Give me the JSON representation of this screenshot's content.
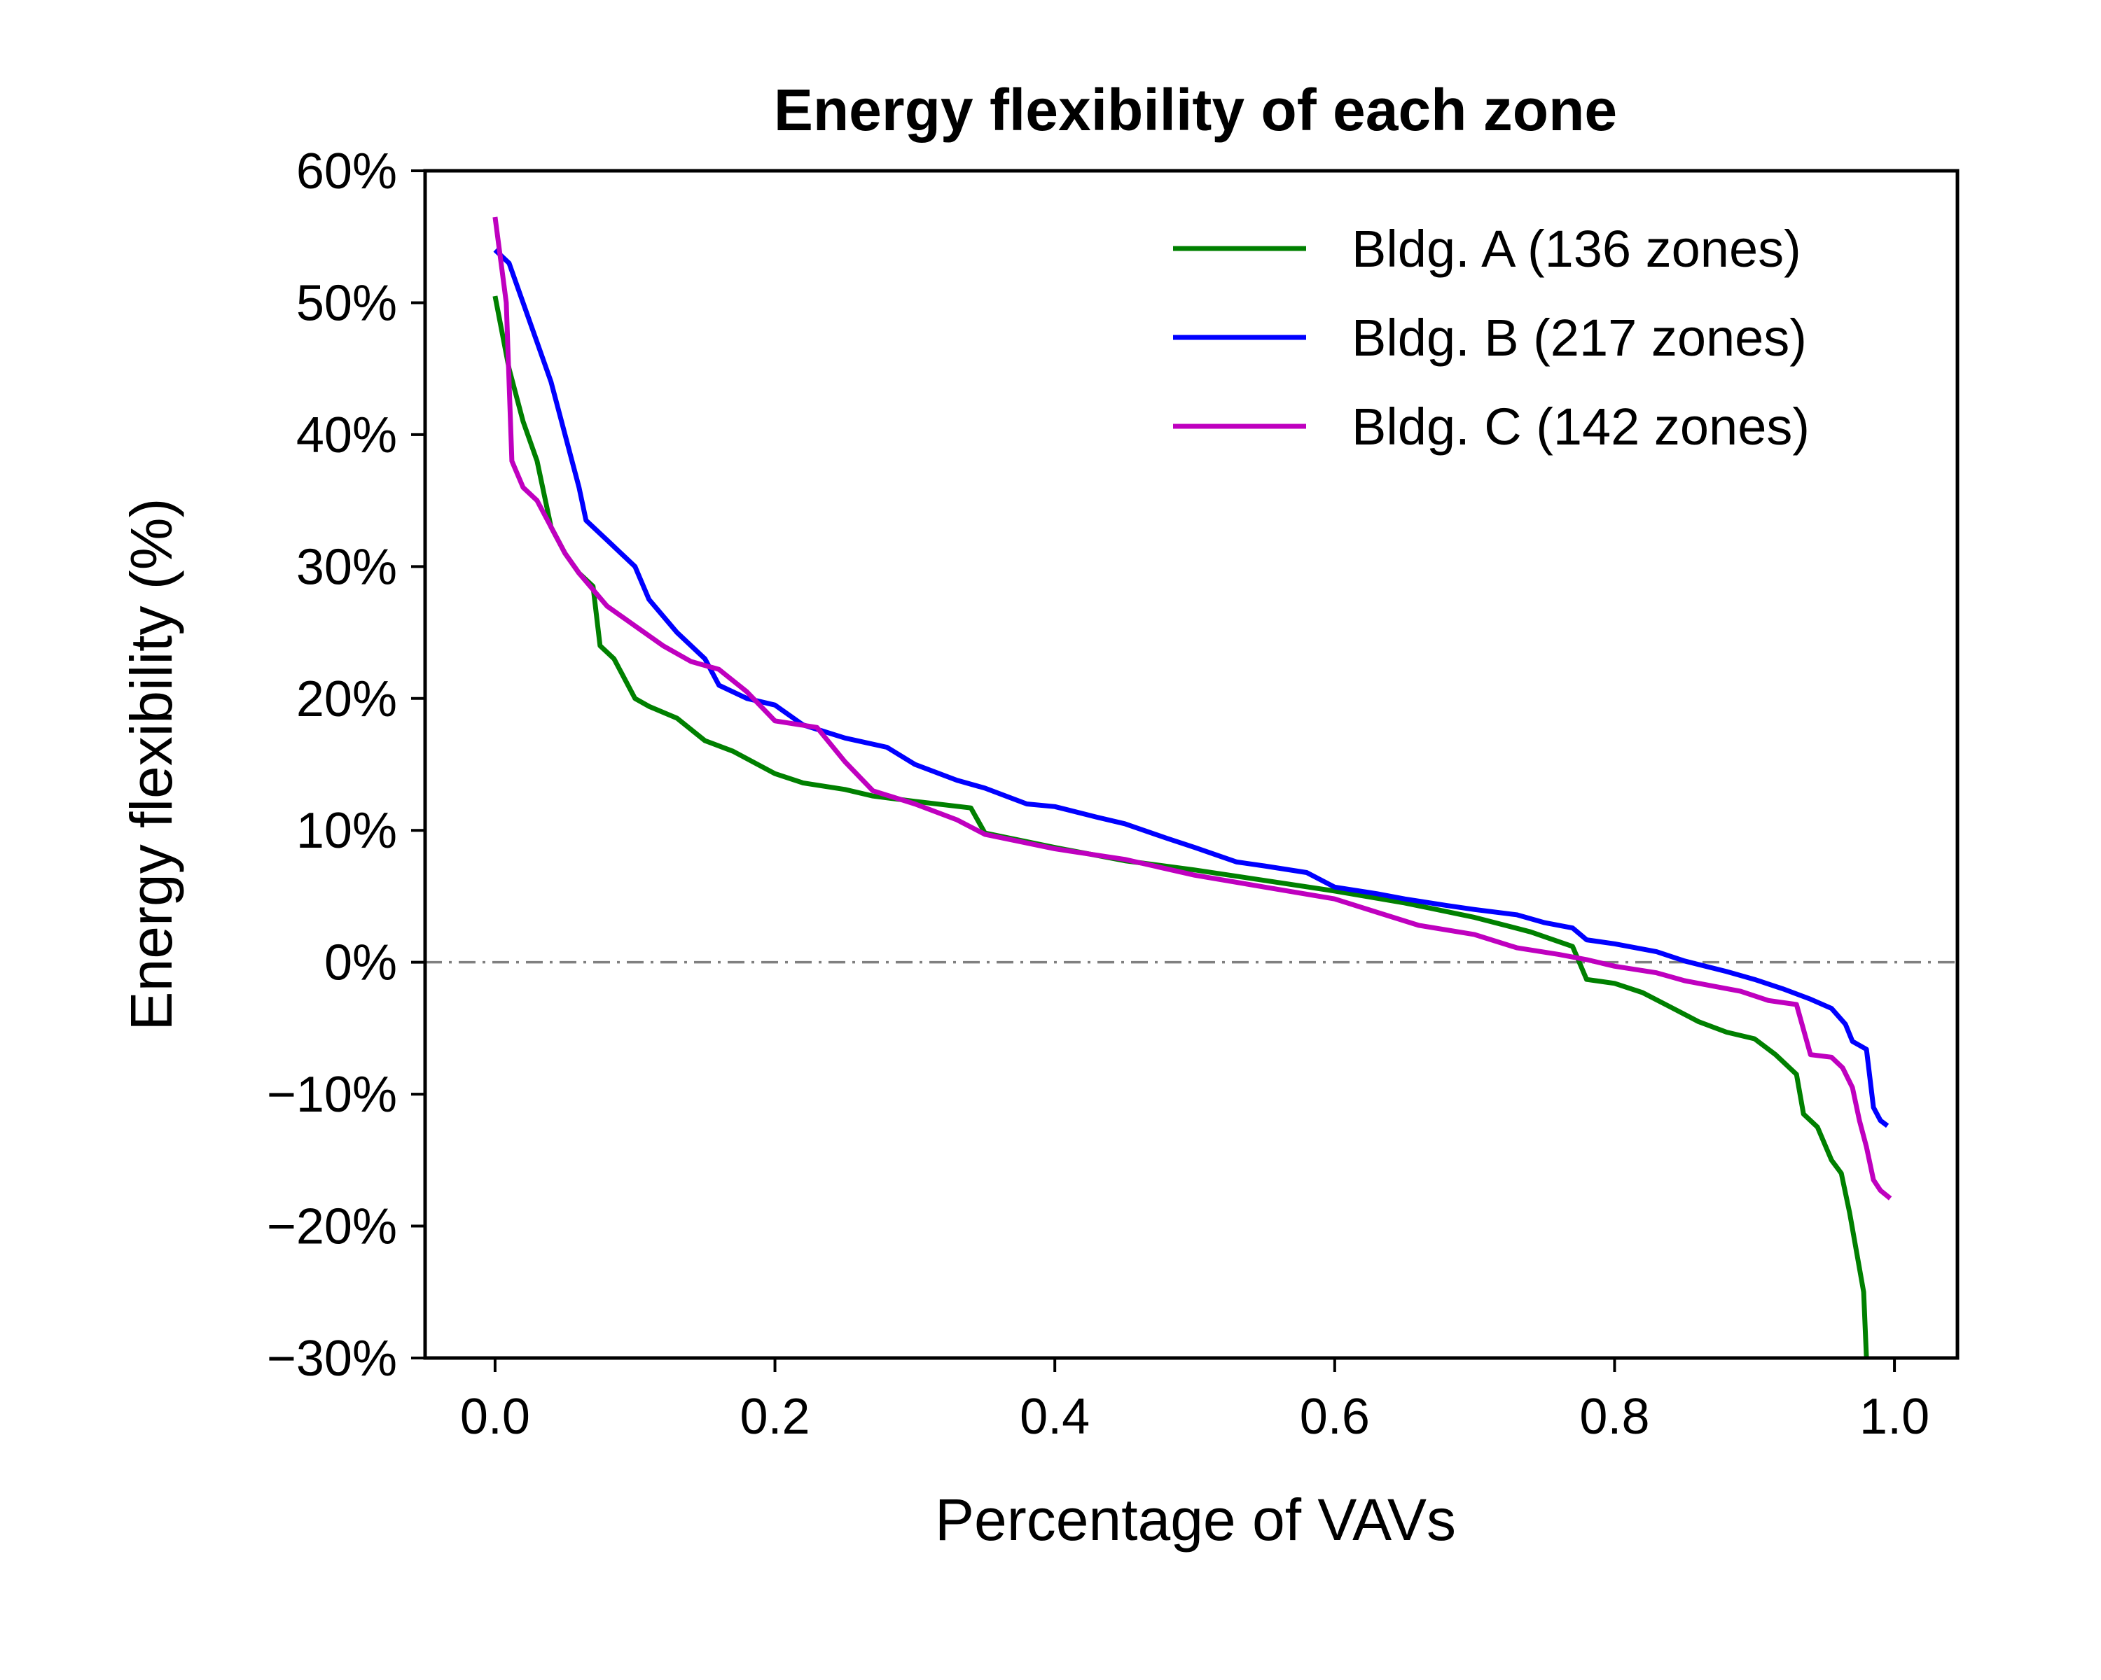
{
  "chart_data": {
    "type": "line",
    "title": "Energy flexibility of each zone",
    "xlabel": "Percentage of VAVs",
    "ylabel": "Energy flexibility (%)",
    "xlim": [
      -0.05,
      1.045
    ],
    "ylim": [
      -30,
      60
    ],
    "x_ticks": [
      0.0,
      0.2,
      0.4,
      0.6,
      0.8,
      1.0
    ],
    "x_tick_labels": [
      "0.0",
      "0.2",
      "0.4",
      "0.6",
      "0.8",
      "1.0"
    ],
    "y_ticks": [
      60,
      50,
      40,
      30,
      20,
      10,
      0,
      -10,
      -20,
      -30
    ],
    "y_tick_labels": [
      "60%",
      "50%",
      "40%",
      "30%",
      "20%",
      "10%",
      "0%",
      "−10%",
      "−20%",
      "−30%"
    ],
    "reference_line": {
      "y": 0,
      "style": "dash-dot",
      "color": "#808080"
    },
    "legend_position": "upper right",
    "series": [
      {
        "name": "Bldg. A (136 zones)",
        "color": "#008000",
        "points": [
          [
            0.0,
            50.5
          ],
          [
            0.01,
            45
          ],
          [
            0.02,
            41
          ],
          [
            0.03,
            38
          ],
          [
            0.04,
            33
          ],
          [
            0.05,
            31
          ],
          [
            0.06,
            29.5
          ],
          [
            0.07,
            28.5
          ],
          [
            0.075,
            24
          ],
          [
            0.085,
            23
          ],
          [
            0.1,
            20
          ],
          [
            0.11,
            19.4
          ],
          [
            0.13,
            18.5
          ],
          [
            0.15,
            16.8
          ],
          [
            0.17,
            16
          ],
          [
            0.2,
            14.3
          ],
          [
            0.22,
            13.6
          ],
          [
            0.25,
            13.1
          ],
          [
            0.27,
            12.6
          ],
          [
            0.3,
            12.2
          ],
          [
            0.34,
            11.7
          ],
          [
            0.35,
            9.8
          ],
          [
            0.4,
            8.7
          ],
          [
            0.45,
            7.7
          ],
          [
            0.5,
            7
          ],
          [
            0.55,
            6.2
          ],
          [
            0.6,
            5.4
          ],
          [
            0.65,
            4.5
          ],
          [
            0.7,
            3.4
          ],
          [
            0.74,
            2.3
          ],
          [
            0.77,
            1.2
          ],
          [
            0.78,
            -1.3
          ],
          [
            0.8,
            -1.6
          ],
          [
            0.82,
            -2.3
          ],
          [
            0.84,
            -3.4
          ],
          [
            0.86,
            -4.5
          ],
          [
            0.88,
            -5.3
          ],
          [
            0.9,
            -5.8
          ],
          [
            0.915,
            -7
          ],
          [
            0.93,
            -8.5
          ],
          [
            0.935,
            -11.5
          ],
          [
            0.945,
            -12.5
          ],
          [
            0.955,
            -15
          ],
          [
            0.962,
            -16
          ],
          [
            0.968,
            -19
          ],
          [
            0.973,
            -22
          ],
          [
            0.978,
            -25
          ],
          [
            0.98,
            -30
          ]
        ]
      },
      {
        "name": "Bldg. B (217 zones)",
        "color": "#0000ff",
        "points": [
          [
            0.0,
            54
          ],
          [
            0.01,
            53
          ],
          [
            0.02,
            50
          ],
          [
            0.03,
            47
          ],
          [
            0.04,
            44
          ],
          [
            0.05,
            40
          ],
          [
            0.06,
            36
          ],
          [
            0.065,
            33.5
          ],
          [
            0.08,
            32
          ],
          [
            0.1,
            30
          ],
          [
            0.11,
            27.5
          ],
          [
            0.13,
            25
          ],
          [
            0.15,
            23
          ],
          [
            0.16,
            21
          ],
          [
            0.18,
            20
          ],
          [
            0.2,
            19.5
          ],
          [
            0.22,
            18
          ],
          [
            0.25,
            17
          ],
          [
            0.28,
            16.3
          ],
          [
            0.3,
            15
          ],
          [
            0.33,
            13.8
          ],
          [
            0.35,
            13.2
          ],
          [
            0.38,
            12
          ],
          [
            0.4,
            11.8
          ],
          [
            0.43,
            11
          ],
          [
            0.45,
            10.5
          ],
          [
            0.48,
            9.4
          ],
          [
            0.5,
            8.7
          ],
          [
            0.53,
            7.6
          ],
          [
            0.55,
            7.3
          ],
          [
            0.58,
            6.8
          ],
          [
            0.6,
            5.7
          ],
          [
            0.63,
            5.2
          ],
          [
            0.65,
            4.8
          ],
          [
            0.68,
            4.3
          ],
          [
            0.7,
            4
          ],
          [
            0.73,
            3.6
          ],
          [
            0.75,
            3
          ],
          [
            0.77,
            2.6
          ],
          [
            0.78,
            1.7
          ],
          [
            0.8,
            1.4
          ],
          [
            0.83,
            0.8
          ],
          [
            0.85,
            0.1
          ],
          [
            0.88,
            -0.7
          ],
          [
            0.9,
            -1.3
          ],
          [
            0.92,
            -2
          ],
          [
            0.94,
            -2.8
          ],
          [
            0.955,
            -3.5
          ],
          [
            0.965,
            -4.7
          ],
          [
            0.97,
            -6
          ],
          [
            0.98,
            -6.6
          ],
          [
            0.985,
            -11
          ],
          [
            0.99,
            -12
          ],
          [
            0.995,
            -12.4
          ]
        ]
      },
      {
        "name": "Bldg. C (142 zones)",
        "color": "#bf00bf",
        "points": [
          [
            0.0,
            56.5
          ],
          [
            0.008,
            50
          ],
          [
            0.012,
            38
          ],
          [
            0.02,
            36
          ],
          [
            0.03,
            35
          ],
          [
            0.04,
            33
          ],
          [
            0.05,
            31
          ],
          [
            0.06,
            29.5
          ],
          [
            0.08,
            27
          ],
          [
            0.1,
            25.5
          ],
          [
            0.12,
            24
          ],
          [
            0.14,
            22.8
          ],
          [
            0.16,
            22.2
          ],
          [
            0.18,
            20.5
          ],
          [
            0.2,
            18.3
          ],
          [
            0.23,
            17.8
          ],
          [
            0.25,
            15.2
          ],
          [
            0.27,
            13
          ],
          [
            0.3,
            12
          ],
          [
            0.33,
            10.8
          ],
          [
            0.35,
            9.7
          ],
          [
            0.4,
            8.6
          ],
          [
            0.45,
            7.8
          ],
          [
            0.5,
            6.6
          ],
          [
            0.55,
            5.7
          ],
          [
            0.6,
            4.8
          ],
          [
            0.63,
            3.8
          ],
          [
            0.66,
            2.8
          ],
          [
            0.7,
            2.1
          ],
          [
            0.73,
            1.1
          ],
          [
            0.76,
            0.6
          ],
          [
            0.78,
            0.2
          ],
          [
            0.8,
            -0.3
          ],
          [
            0.83,
            -0.8
          ],
          [
            0.85,
            -1.4
          ],
          [
            0.87,
            -1.8
          ],
          [
            0.89,
            -2.2
          ],
          [
            0.91,
            -2.9
          ],
          [
            0.93,
            -3.2
          ],
          [
            0.94,
            -7
          ],
          [
            0.955,
            -7.2
          ],
          [
            0.963,
            -8
          ],
          [
            0.97,
            -9.5
          ],
          [
            0.975,
            -12
          ],
          [
            0.98,
            -14
          ],
          [
            0.985,
            -16.5
          ],
          [
            0.99,
            -17.3
          ],
          [
            0.997,
            -17.9
          ]
        ]
      }
    ]
  }
}
